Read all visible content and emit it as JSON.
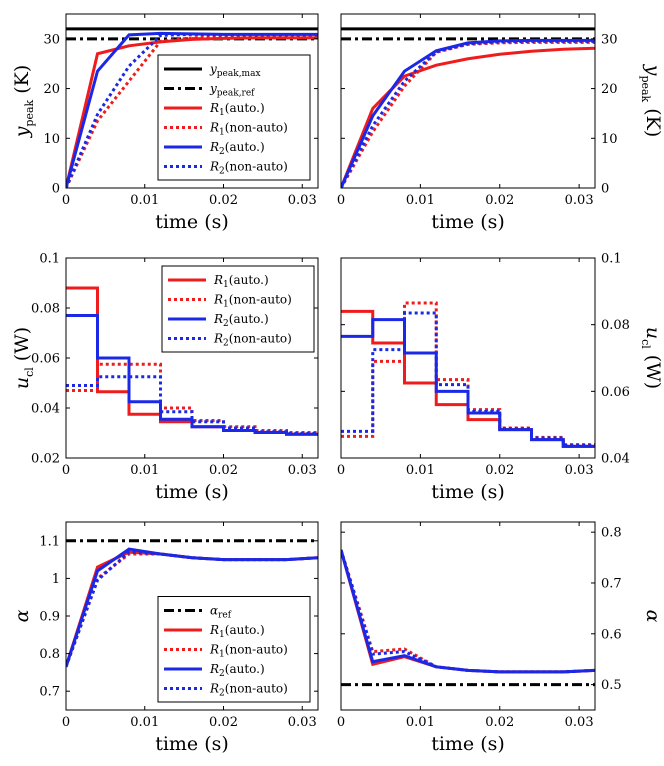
{
  "colors": {
    "red": "#ee1c1c",
    "blue": "#1b28e6",
    "black": "#000000"
  },
  "chart_data": [
    {
      "type": "line",
      "row": 0,
      "col": 0,
      "xlabel": "time (s)",
      "ylabel": {
        "main": "y",
        "sub": "peak",
        "unit": "(K)"
      },
      "xlim": [
        0,
        0.032
      ],
      "ylim": [
        0,
        35
      ],
      "xticks": [
        0,
        0.01,
        0.02,
        0.03
      ],
      "xtick_labels": [
        "0",
        "0.01",
        "0.02",
        "0.03"
      ],
      "yticks": [
        0,
        10,
        20,
        30
      ],
      "ytick_labels": [
        "0",
        "10",
        "20",
        "30"
      ],
      "yaxis_side": "left",
      "legend": {
        "position": "bottom-right",
        "entries": [
          "ymax",
          "yref",
          "r1a",
          "r1n",
          "r2a",
          "r2n"
        ]
      },
      "series": [
        {
          "key": "ymax",
          "x": [
            0,
            0.032
          ],
          "y": [
            32,
            32
          ]
        },
        {
          "key": "yref",
          "x": [
            0,
            0.032
          ],
          "y": [
            30,
            30
          ]
        },
        {
          "key": "r1a",
          "x": [
            0,
            0.004,
            0.008,
            0.012,
            0.016,
            0.02,
            0.024,
            0.028,
            0.032
          ],
          "y": [
            0,
            27,
            28.6,
            29.4,
            29.9,
            30.1,
            30.2,
            30.2,
            30.2
          ]
        },
        {
          "key": "r1n",
          "x": [
            0,
            0.004,
            0.008,
            0.012,
            0.016,
            0.02,
            0.024,
            0.028,
            0.032
          ],
          "y": [
            0,
            13.5,
            21.5,
            29.5,
            30.2,
            30.4,
            30.4,
            30.4,
            30.4
          ]
        },
        {
          "key": "r2a",
          "x": [
            0,
            0.004,
            0.008,
            0.012,
            0.016,
            0.02,
            0.024,
            0.028,
            0.032
          ],
          "y": [
            0,
            23.5,
            30.8,
            31.1,
            31.0,
            30.9,
            30.9,
            30.9,
            30.9
          ]
        },
        {
          "key": "r2n",
          "x": [
            0,
            0.004,
            0.008,
            0.012,
            0.016,
            0.02,
            0.024,
            0.028,
            0.032
          ],
          "y": [
            0,
            14.8,
            24.5,
            30.7,
            30.9,
            30.8,
            30.8,
            30.8,
            30.8
          ]
        }
      ]
    },
    {
      "type": "line",
      "row": 0,
      "col": 1,
      "xlabel": "time (s)",
      "ylabel": {
        "main": "y",
        "sub": "peak",
        "unit": "(K)"
      },
      "xlim": [
        0,
        0.032
      ],
      "ylim": [
        0,
        35
      ],
      "xticks": [
        0,
        0.01,
        0.02,
        0.03
      ],
      "xtick_labels": [
        "0",
        "0.01",
        "0.02",
        "0.03"
      ],
      "yticks": [
        0,
        10,
        20,
        30
      ],
      "ytick_labels": [
        "0",
        "10",
        "20",
        "30"
      ],
      "yaxis_side": "right",
      "legend": null,
      "series": [
        {
          "key": "ymax",
          "x": [
            0,
            0.032
          ],
          "y": [
            32,
            32
          ]
        },
        {
          "key": "yref",
          "x": [
            0,
            0.032
          ],
          "y": [
            30,
            30
          ]
        },
        {
          "key": "r1a",
          "x": [
            0,
            0.004,
            0.008,
            0.012,
            0.016,
            0.02,
            0.024,
            0.028,
            0.032
          ],
          "y": [
            0,
            16,
            22.5,
            24.7,
            26,
            26.9,
            27.5,
            27.9,
            28.1
          ]
        },
        {
          "key": "r1n",
          "x": [
            0,
            0.004,
            0.008,
            0.012,
            0.016,
            0.02,
            0.024,
            0.028,
            0.032
          ],
          "y": [
            0,
            11.3,
            20.5,
            27.3,
            28.9,
            29.2,
            29.3,
            29.3,
            29.3
          ]
        },
        {
          "key": "r2a",
          "x": [
            0,
            0.004,
            0.008,
            0.012,
            0.016,
            0.02,
            0.024,
            0.028,
            0.032
          ],
          "y": [
            0,
            14.5,
            23.5,
            27.6,
            29.2,
            29.6,
            29.7,
            29.7,
            29.7
          ]
        },
        {
          "key": "r2n",
          "x": [
            0,
            0.004,
            0.008,
            0.012,
            0.016,
            0.02,
            0.024,
            0.028,
            0.032
          ],
          "y": [
            0,
            12.5,
            21.5,
            27.4,
            29.0,
            29.4,
            29.5,
            29.5,
            29.5
          ]
        }
      ]
    },
    {
      "type": "line",
      "row": 1,
      "col": 0,
      "step": true,
      "xlabel": "time (s)",
      "ylabel": {
        "main": "u",
        "sub": "cl",
        "unit": "(W)"
      },
      "xlim": [
        0,
        0.032
      ],
      "ylim": [
        0.02,
        0.1
      ],
      "xticks": [
        0,
        0.01,
        0.02,
        0.03
      ],
      "xtick_labels": [
        "0",
        "0.01",
        "0.02",
        "0.03"
      ],
      "yticks": [
        0.02,
        0.04,
        0.06,
        0.08,
        0.1
      ],
      "ytick_labels": [
        "0.02",
        "0.04",
        "0.06",
        "0.08",
        "0.1"
      ],
      "yaxis_side": "left",
      "legend": {
        "position": "top-right",
        "entries": [
          "r1a",
          "r1n",
          "r2a",
          "r2n"
        ]
      },
      "series": [
        {
          "key": "r1a",
          "x": [
            0,
            0.004,
            0.008,
            0.012,
            0.016,
            0.02,
            0.024,
            0.028,
            0.032
          ],
          "y": [
            0.088,
            0.0465,
            0.0375,
            0.0345,
            0.0325,
            0.031,
            0.0302,
            0.0295,
            0.0295
          ]
        },
        {
          "key": "r1n",
          "x": [
            0,
            0.004,
            0.008,
            0.012,
            0.016,
            0.02,
            0.024,
            0.028,
            0.032
          ],
          "y": [
            0.047,
            0.0575,
            0.0575,
            0.04,
            0.035,
            0.0325,
            0.031,
            0.0302,
            0.0302
          ]
        },
        {
          "key": "r2a",
          "x": [
            0,
            0.004,
            0.008,
            0.012,
            0.016,
            0.02,
            0.024,
            0.028,
            0.032
          ],
          "y": [
            0.077,
            0.06,
            0.0425,
            0.0355,
            0.0325,
            0.031,
            0.0302,
            0.0295,
            0.0295
          ]
        },
        {
          "key": "r2n",
          "x": [
            0,
            0.004,
            0.008,
            0.012,
            0.016,
            0.02,
            0.024,
            0.028,
            0.032
          ],
          "y": [
            0.049,
            0.0525,
            0.0525,
            0.0385,
            0.0345,
            0.032,
            0.0305,
            0.0298,
            0.0298
          ]
        }
      ]
    },
    {
      "type": "line",
      "row": 1,
      "col": 1,
      "step": true,
      "xlabel": "time (s)",
      "ylabel": {
        "main": "u",
        "sub": "cl",
        "unit": "(W)"
      },
      "xlim": [
        0,
        0.032
      ],
      "ylim": [
        0.04,
        0.1
      ],
      "xticks": [
        0,
        0.01,
        0.02,
        0.03
      ],
      "xtick_labels": [
        "0",
        "0.01",
        "0.02",
        "0.03"
      ],
      "yticks": [
        0.04,
        0.06,
        0.08,
        0.1
      ],
      "ytick_labels": [
        "0.04",
        "0.06",
        "0.08",
        "0.1"
      ],
      "yaxis_side": "right",
      "legend": null,
      "series": [
        {
          "key": "r1a",
          "x": [
            0,
            0.004,
            0.008,
            0.012,
            0.016,
            0.02,
            0.024,
            0.028,
            0.032
          ],
          "y": [
            0.084,
            0.0745,
            0.0625,
            0.056,
            0.0515,
            0.0485,
            0.0455,
            0.0435,
            0.0425
          ]
        },
        {
          "key": "r1n",
          "x": [
            0,
            0.004,
            0.008,
            0.012,
            0.016,
            0.02,
            0.024,
            0.028,
            0.032
          ],
          "y": [
            0.0465,
            0.069,
            0.0865,
            0.0635,
            0.0545,
            0.049,
            0.0462,
            0.044,
            0.043
          ]
        },
        {
          "key": "r2a",
          "x": [
            0,
            0.004,
            0.008,
            0.012,
            0.016,
            0.02,
            0.024,
            0.028,
            0.032
          ],
          "y": [
            0.0765,
            0.0815,
            0.0715,
            0.06,
            0.0535,
            0.0485,
            0.0455,
            0.0435,
            0.0425
          ]
        },
        {
          "key": "r2n",
          "x": [
            0,
            0.004,
            0.008,
            0.012,
            0.016,
            0.02,
            0.024,
            0.028,
            0.032
          ],
          "y": [
            0.048,
            0.0725,
            0.0835,
            0.062,
            0.054,
            0.0488,
            0.046,
            0.0438,
            0.0428
          ]
        }
      ]
    },
    {
      "type": "line",
      "row": 2,
      "col": 0,
      "xlabel": "time (s)",
      "ylabel": {
        "main": "α",
        "sub": "",
        "unit": ""
      },
      "xlim": [
        0,
        0.032
      ],
      "ylim": [
        0.65,
        1.15
      ],
      "xticks": [
        0,
        0.01,
        0.02,
        0.03
      ],
      "xtick_labels": [
        "0",
        "0.01",
        "0.02",
        "0.03"
      ],
      "yticks": [
        0.7,
        0.8,
        0.9,
        1.0,
        1.1
      ],
      "ytick_labels": [
        "0.7",
        "0.8",
        "0.9",
        "1",
        "1.1"
      ],
      "yaxis_side": "left",
      "legend": {
        "position": "bottom-right",
        "entries": [
          "aref",
          "r1a",
          "r1n",
          "r2a",
          "r2n"
        ]
      },
      "series": [
        {
          "key": "aref",
          "x": [
            0,
            0.032
          ],
          "y": [
            1.1,
            1.1
          ]
        },
        {
          "key": "r1a",
          "x": [
            0,
            0.004,
            0.008,
            0.012,
            0.016,
            0.02,
            0.024,
            0.028,
            0.032
          ],
          "y": [
            0.765,
            1.03,
            1.07,
            1.065,
            1.055,
            1.05,
            1.05,
            1.05,
            1.055
          ]
        },
        {
          "key": "r1n",
          "x": [
            0,
            0.004,
            0.008,
            0.012,
            0.016,
            0.02,
            0.024,
            0.028,
            0.032
          ],
          "y": [
            0.765,
            1.0,
            1.065,
            1.065,
            1.055,
            1.05,
            1.05,
            1.05,
            1.055
          ]
        },
        {
          "key": "r2a",
          "x": [
            0,
            0.004,
            0.008,
            0.012,
            0.016,
            0.02,
            0.024,
            0.028,
            0.032
          ],
          "y": [
            0.765,
            1.02,
            1.078,
            1.065,
            1.055,
            1.05,
            1.05,
            1.05,
            1.055
          ]
        },
        {
          "key": "r2n",
          "x": [
            0,
            0.004,
            0.008,
            0.012,
            0.016,
            0.02,
            0.024,
            0.028,
            0.032
          ],
          "y": [
            0.765,
            0.995,
            1.07,
            1.065,
            1.055,
            1.05,
            1.05,
            1.05,
            1.055
          ]
        }
      ]
    },
    {
      "type": "line",
      "row": 2,
      "col": 1,
      "xlabel": "time (s)",
      "ylabel": {
        "main": "α",
        "sub": "",
        "unit": ""
      },
      "xlim": [
        0,
        0.032
      ],
      "ylim": [
        0.45,
        0.82
      ],
      "xticks": [
        0,
        0.01,
        0.02,
        0.03
      ],
      "xtick_labels": [
        "0",
        "0.01",
        "0.02",
        "0.03"
      ],
      "yticks": [
        0.5,
        0.6,
        0.7,
        0.8
      ],
      "ytick_labels": [
        "0.5",
        "0.6",
        "0.7",
        "0.8"
      ],
      "yaxis_side": "right",
      "legend": null,
      "series": [
        {
          "key": "aref",
          "x": [
            0,
            0.032
          ],
          "y": [
            0.5,
            0.5
          ]
        },
        {
          "key": "r1a",
          "x": [
            0,
            0.004,
            0.008,
            0.012,
            0.016,
            0.02,
            0.024,
            0.028,
            0.032
          ],
          "y": [
            0.765,
            0.54,
            0.555,
            0.535,
            0.528,
            0.525,
            0.525,
            0.525,
            0.528
          ]
        },
        {
          "key": "r1n",
          "x": [
            0,
            0.004,
            0.008,
            0.012,
            0.016,
            0.02,
            0.024,
            0.028,
            0.032
          ],
          "y": [
            0.765,
            0.565,
            0.57,
            0.535,
            0.528,
            0.525,
            0.525,
            0.525,
            0.528
          ]
        },
        {
          "key": "r2a",
          "x": [
            0,
            0.004,
            0.008,
            0.012,
            0.016,
            0.02,
            0.024,
            0.028,
            0.032
          ],
          "y": [
            0.765,
            0.545,
            0.557,
            0.535,
            0.528,
            0.525,
            0.525,
            0.525,
            0.528
          ]
        },
        {
          "key": "r2n",
          "x": [
            0,
            0.004,
            0.008,
            0.012,
            0.016,
            0.02,
            0.024,
            0.028,
            0.032
          ],
          "y": [
            0.765,
            0.56,
            0.565,
            0.535,
            0.528,
            0.525,
            0.525,
            0.525,
            0.528
          ]
        }
      ]
    }
  ],
  "legend_labels": {
    "ymax": {
      "main": "y",
      "sub": "peak,max",
      "rest": ""
    },
    "yref": {
      "main": "y",
      "sub": "peak,ref",
      "rest": ""
    },
    "aref": {
      "main": "α",
      "sub": "ref",
      "rest": ""
    },
    "r1a": {
      "main": "R",
      "sub": "1",
      "rest": "(auto.)"
    },
    "r1n": {
      "main": "R",
      "sub": "1",
      "rest": "(non-auto)"
    },
    "r2a": {
      "main": "R",
      "sub": "2",
      "rest": "(auto.)"
    },
    "r2n": {
      "main": "R",
      "sub": "2",
      "rest": "(non-auto)"
    }
  },
  "series_styles": {
    "ymax": {
      "color": "#000000",
      "dash": "solid"
    },
    "yref": {
      "color": "#000000",
      "dash": "dashdot"
    },
    "aref": {
      "color": "#000000",
      "dash": "dashdot"
    },
    "r1a": {
      "color": "#ee1c1c",
      "dash": "solid"
    },
    "r1n": {
      "color": "#ee1c1c",
      "dash": "dotted"
    },
    "r2a": {
      "color": "#1b28e6",
      "dash": "solid"
    },
    "r2n": {
      "color": "#1b28e6",
      "dash": "dotted"
    }
  }
}
